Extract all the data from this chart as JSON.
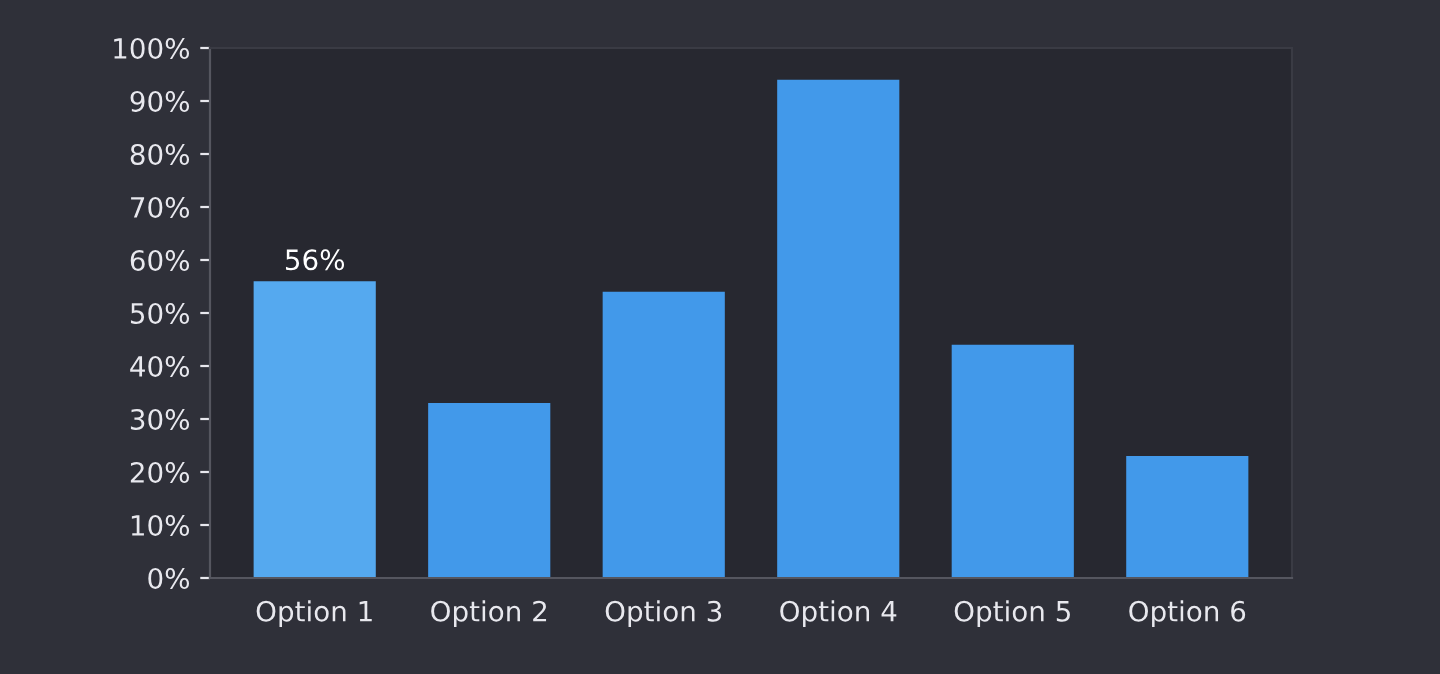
{
  "chart_data": {
    "type": "bar",
    "categories": [
      "Option 1",
      "Option 2",
      "Option 3",
      "Option 4",
      "Option 5",
      "Option 6"
    ],
    "values": [
      56,
      33,
      54,
      94,
      44,
      23
    ],
    "colors": [
      "#55a9ef",
      "#4299ea",
      "#4299ea",
      "#4299ea",
      "#4299ea",
      "#4299ea"
    ],
    "value_labels": [
      "56%",
      null,
      null,
      null,
      null,
      null
    ],
    "ylim": [
      0,
      100
    ],
    "yticks": [
      {
        "value": 0,
        "label": "0%"
      },
      {
        "value": 10,
        "label": "10%"
      },
      {
        "value": 20,
        "label": "20%"
      },
      {
        "value": 30,
        "label": "30%"
      },
      {
        "value": 40,
        "label": "40%"
      },
      {
        "value": 50,
        "label": "50%"
      },
      {
        "value": 60,
        "label": "60%"
      },
      {
        "value": 70,
        "label": "70%"
      },
      {
        "value": 80,
        "label": "80%"
      },
      {
        "value": 90,
        "label": "90%"
      },
      {
        "value": 100,
        "label": "100%"
      }
    ],
    "grid": false,
    "legend": false
  }
}
